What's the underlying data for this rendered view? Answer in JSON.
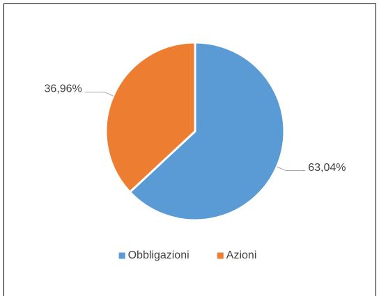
{
  "chart_data": {
    "type": "pie",
    "categories": [
      "Obbligazioni",
      "Azioni"
    ],
    "values": [
      63.04,
      36.96
    ],
    "value_labels": [
      "63,04%",
      "36,96%"
    ],
    "colors": [
      "#5b9bd5",
      "#ed7d31"
    ],
    "legend": "bottom"
  }
}
